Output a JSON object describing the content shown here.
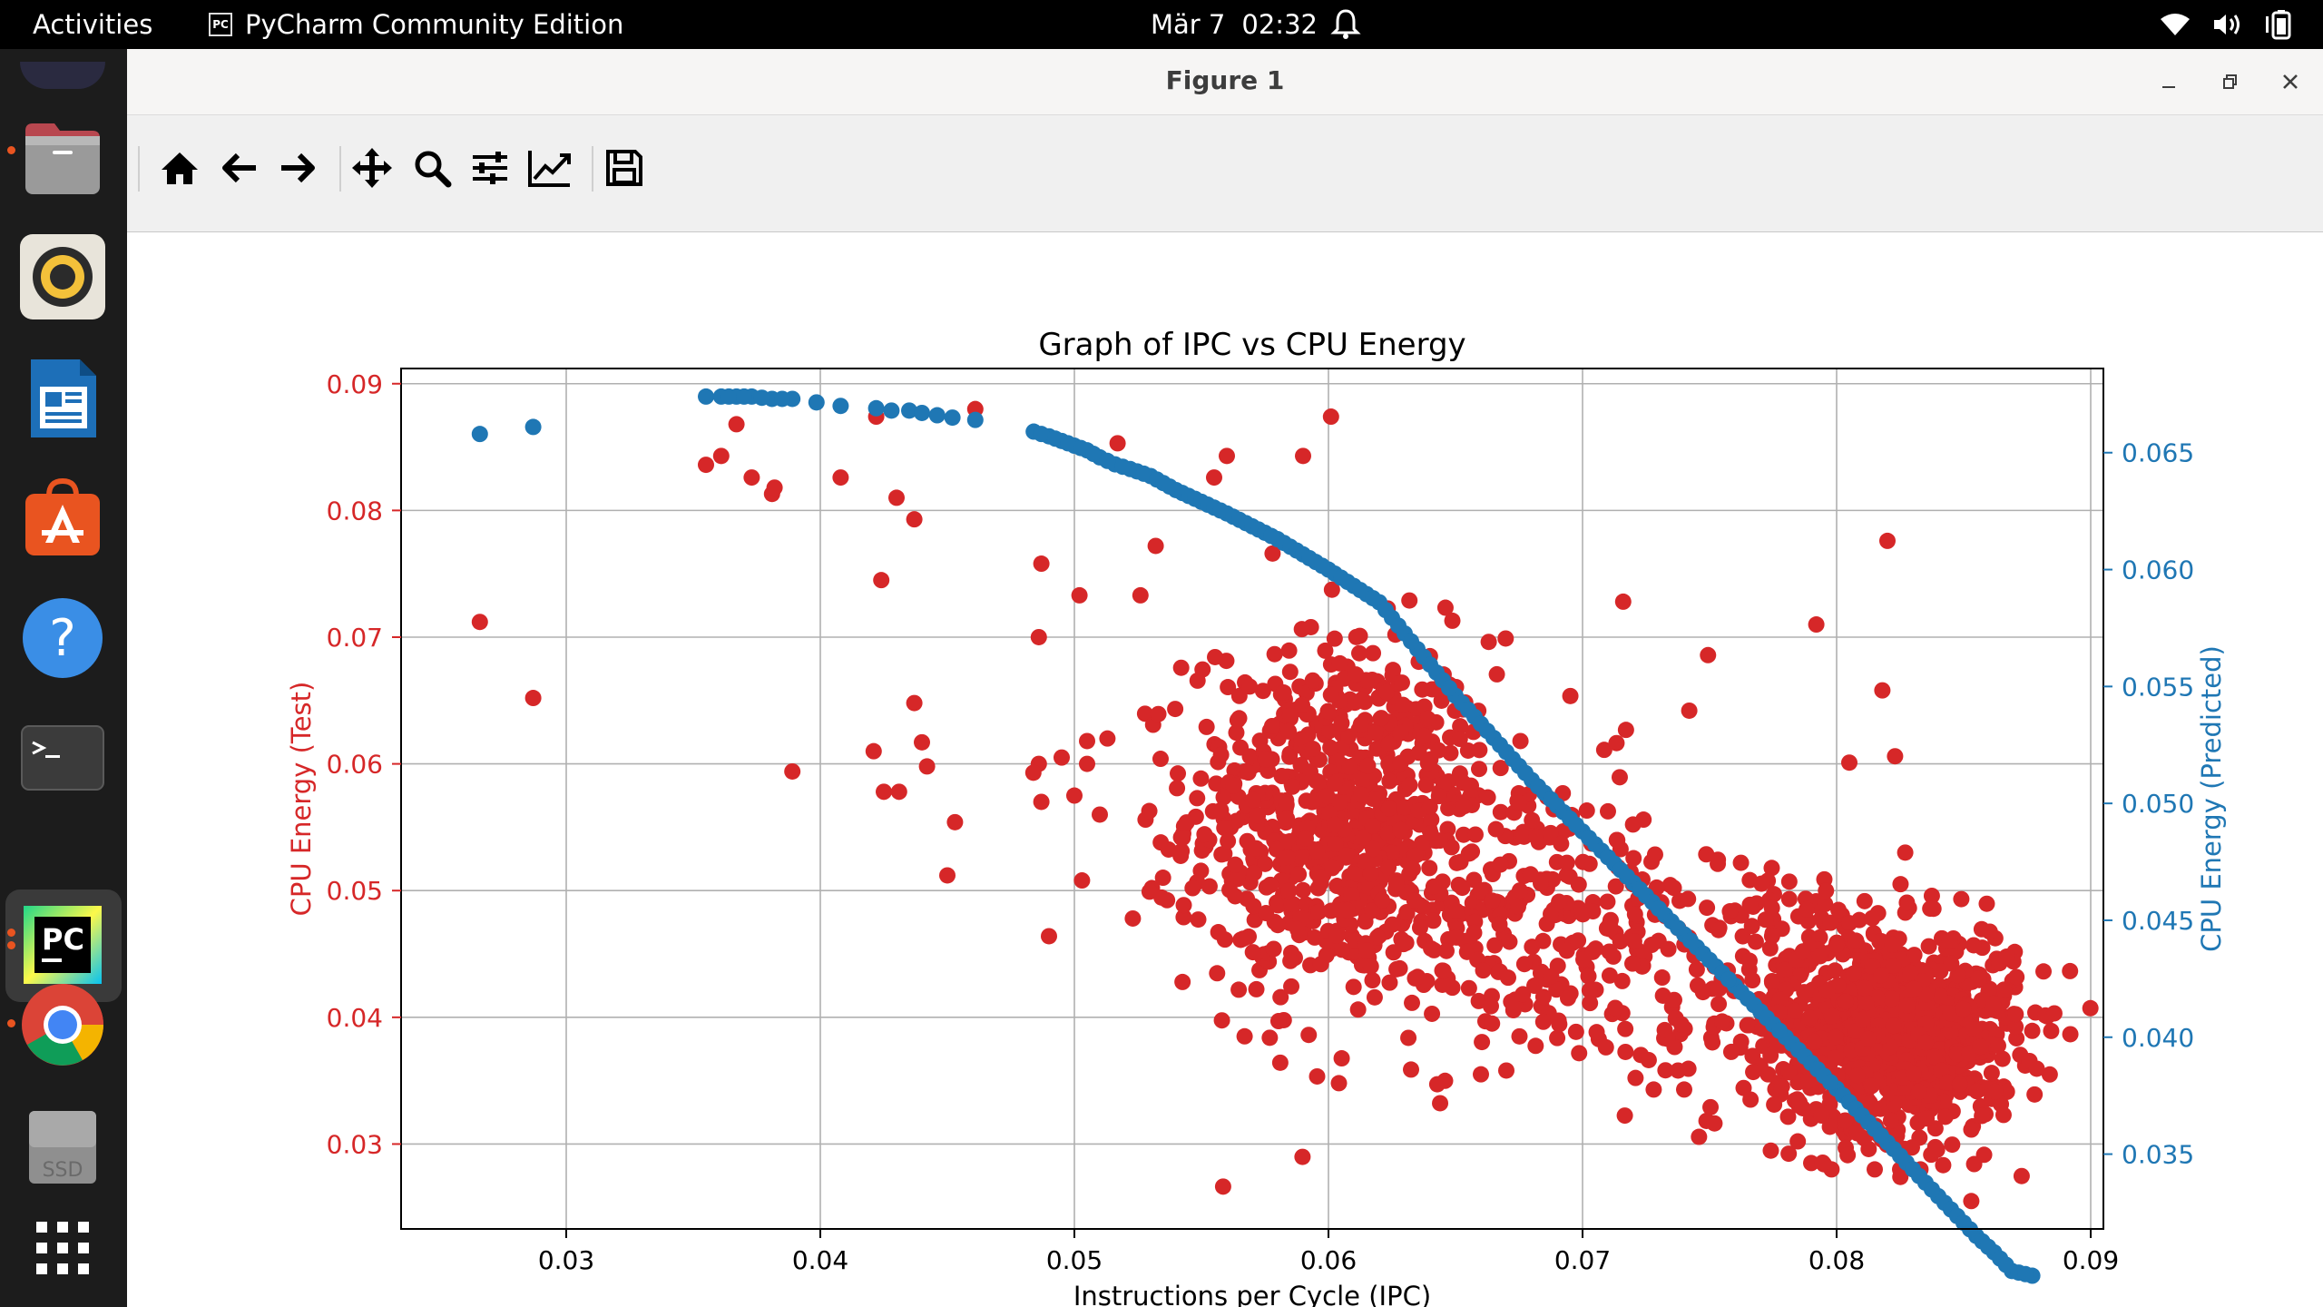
{
  "topbar": {
    "activities": "Activities",
    "app_name": "PyCharm Community Edition",
    "app_icon_text": "PC",
    "date": "Mär 7",
    "time": "02:32"
  },
  "dock": {
    "items": [
      {
        "name": "files",
        "icon": "folder-icon"
      },
      {
        "name": "rhythmbox",
        "icon": "speaker-icon"
      },
      {
        "name": "libreoffice-writer",
        "icon": "document-icon"
      },
      {
        "name": "ubuntu-software",
        "icon": "software-store-icon"
      },
      {
        "name": "help",
        "icon": "help-icon"
      },
      {
        "name": "terminal",
        "icon": "terminal-icon"
      },
      {
        "name": "pycharm",
        "icon": "pycharm-icon",
        "text": "PC"
      },
      {
        "name": "chrome",
        "icon": "chrome-icon"
      },
      {
        "name": "disk",
        "icon": "drive-icon",
        "text": "SSD"
      },
      {
        "name": "show-apps",
        "icon": "grid-icon"
      }
    ]
  },
  "window": {
    "title": "Figure 1",
    "toolbar": [
      {
        "name": "home",
        "icon": "home-icon"
      },
      {
        "name": "back",
        "icon": "arrow-left-icon"
      },
      {
        "name": "forward",
        "icon": "arrow-right-icon"
      },
      {
        "name": "pan",
        "icon": "move-icon"
      },
      {
        "name": "zoom",
        "icon": "zoom-icon"
      },
      {
        "name": "subplots",
        "icon": "sliders-icon"
      },
      {
        "name": "edit-axis",
        "icon": "line-chart-icon"
      },
      {
        "name": "save",
        "icon": "save-icon"
      }
    ]
  },
  "colors": {
    "test": "#d62728",
    "predicted": "#1f77b4"
  },
  "chart_data": {
    "type": "scatter",
    "title": "Graph of IPC vs CPU Energy",
    "xlabel": "Instructions per Cycle (IPC)",
    "ylabel": "CPU Energy (Test)",
    "y2label": "CPU Energy (Predicted)",
    "xlim": [
      0.0235,
      0.0905
    ],
    "ylim": [
      0.0233,
      0.0912
    ],
    "y2lim": [
      0.0318,
      0.0686
    ],
    "xticks": [
      "0.03",
      "0.04",
      "0.05",
      "0.06",
      "0.07",
      "0.08",
      "0.09"
    ],
    "yticks": [
      "0.03",
      "0.04",
      "0.05",
      "0.06",
      "0.07",
      "0.08",
      "0.09"
    ],
    "y2ticks": [
      "0.035",
      "0.040",
      "0.045",
      "0.050",
      "0.055",
      "0.060",
      "0.065"
    ],
    "grid": true,
    "series": [
      {
        "name": "CPU Energy (Test)",
        "axis": "left",
        "color": "#d62728",
        "points": [
          [
            0.0266,
            0.0712
          ],
          [
            0.0287,
            0.0652
          ],
          [
            0.0355,
            0.0836
          ],
          [
            0.0361,
            0.0843
          ],
          [
            0.0367,
            0.0868
          ],
          [
            0.0373,
            0.0826
          ],
          [
            0.0381,
            0.0813
          ],
          [
            0.0382,
            0.0818
          ],
          [
            0.0389,
            0.0594
          ],
          [
            0.0408,
            0.0826
          ],
          [
            0.0422,
            0.0874
          ],
          [
            0.0424,
            0.0745
          ],
          [
            0.0421,
            0.061
          ],
          [
            0.0425,
            0.0578
          ],
          [
            0.043,
            0.081
          ],
          [
            0.0431,
            0.0578
          ],
          [
            0.0437,
            0.0793
          ],
          [
            0.0437,
            0.0648
          ],
          [
            0.044,
            0.0617
          ],
          [
            0.0442,
            0.0598
          ],
          [
            0.045,
            0.0512
          ],
          [
            0.0453,
            0.0554
          ],
          [
            0.0461,
            0.088
          ],
          [
            0.0487,
            0.0758
          ],
          [
            0.0486,
            0.07
          ],
          [
            0.0486,
            0.06
          ],
          [
            0.0487,
            0.057
          ],
          [
            0.049,
            0.0464
          ],
          [
            0.0495,
            0.0605
          ],
          [
            0.05,
            0.0575
          ],
          [
            0.0502,
            0.0733
          ],
          [
            0.0503,
            0.0508
          ],
          [
            0.0505,
            0.06
          ],
          [
            0.0505,
            0.0618
          ],
          [
            0.051,
            0.056
          ],
          [
            0.0513,
            0.062
          ],
          [
            0.0517,
            0.0853
          ],
          [
            0.0523,
            0.0478
          ],
          [
            0.0526,
            0.0733
          ],
          [
            0.0528,
            0.0556
          ],
          [
            0.0532,
            0.0772
          ],
          [
            0.0534,
            0.0538
          ],
          [
            0.0542,
            0.0542
          ],
          [
            0.0543,
            0.0479
          ],
          [
            0.0555,
            0.0826
          ],
          [
            0.056,
            0.0843
          ],
          [
            0.0567,
            0.0385
          ],
          [
            0.0578,
            0.0766
          ],
          [
            0.059,
            0.0843
          ],
          [
            0.0601,
            0.0874
          ],
          [
            0.0611,
            0.05
          ],
          [
            0.066,
            0.0355
          ],
          [
            0.067,
            0.0358
          ],
          [
            0.0716,
            0.0728
          ],
          [
            0.0724,
            0.0556
          ],
          [
            0.0728,
            0.0343
          ],
          [
            0.074,
            0.0343
          ],
          [
            0.0742,
            0.0642
          ],
          [
            0.0773,
            0.0355
          ],
          [
            0.0792,
            0.071
          ],
          [
            0.0805,
            0.0601
          ],
          [
            0.0818,
            0.0658
          ],
          [
            0.082,
            0.0776
          ],
          [
            0.0823,
            0.0606
          ],
          [
            0.0827,
            0.053
          ],
          [
            0.0853,
            0.0255
          ],
          [
            0.0858,
            0.038
          ],
          [
            0.0867,
            0.0395
          ],
          [
            0.0864,
            0.041
          ],
          [
            0.079,
            0.0285
          ],
          [
            0.0798,
            0.028
          ],
          [
            0.0815,
            0.028
          ],
          [
            0.0825,
            0.028
          ],
          [
            0.0833,
            0.028
          ]
        ],
        "clusters": [
          {
            "cx": 0.0605,
            "cy": 0.056,
            "sx": 0.003,
            "sy": 0.007,
            "n": 700
          },
          {
            "cx": 0.0675,
            "cy": 0.048,
            "sx": 0.0045,
            "sy": 0.006,
            "n": 280
          },
          {
            "cx": 0.077,
            "cy": 0.0425,
            "sx": 0.0035,
            "sy": 0.005,
            "n": 160
          },
          {
            "cx": 0.0823,
            "cy": 0.039,
            "sx": 0.0024,
            "sy": 0.004,
            "n": 900
          }
        ]
      },
      {
        "name": "CPU Energy (Predicted)",
        "axis": "right",
        "color": "#1f77b4",
        "points": [
          [
            0.0266,
            0.0658
          ],
          [
            0.0287,
            0.0661
          ],
          [
            0.0355,
            0.0674
          ],
          [
            0.0361,
            0.0674
          ],
          [
            0.0367,
            0.0674
          ],
          [
            0.0373,
            0.0674
          ],
          [
            0.0381,
            0.0673
          ],
          [
            0.0389,
            0.0673
          ],
          [
            0.0408,
            0.067
          ],
          [
            0.0422,
            0.0669
          ],
          [
            0.0428,
            0.0668
          ],
          [
            0.0435,
            0.0668
          ],
          [
            0.044,
            0.0667
          ],
          [
            0.0446,
            0.0666
          ],
          [
            0.0452,
            0.0665
          ],
          [
            0.0461,
            0.0664
          ],
          [
            0.0484,
            0.0659
          ],
          [
            0.049,
            0.0657
          ],
          [
            0.0495,
            0.0655
          ],
          [
            0.05,
            0.0653
          ],
          [
            0.0505,
            0.0651
          ],
          [
            0.051,
            0.0648
          ],
          [
            0.0516,
            0.0645
          ],
          [
            0.0522,
            0.0643
          ],
          [
            0.053,
            0.064
          ],
          [
            0.054,
            0.0634
          ],
          [
            0.056,
            0.0624
          ],
          [
            0.058,
            0.0613
          ],
          [
            0.06,
            0.06
          ],
          [
            0.062,
            0.0586
          ],
          [
            0.0635,
            0.0566
          ],
          [
            0.065,
            0.0546
          ],
          [
            0.0665,
            0.0528
          ],
          [
            0.068,
            0.051
          ],
          [
            0.07,
            0.0488
          ],
          [
            0.072,
            0.0466
          ],
          [
            0.074,
            0.0444
          ],
          [
            0.076,
            0.0422
          ],
          [
            0.078,
            0.04
          ],
          [
            0.08,
            0.0378
          ],
          [
            0.082,
            0.0355
          ],
          [
            0.084,
            0.0332
          ],
          [
            0.0855,
            0.0315
          ],
          [
            0.0862,
            0.0308
          ],
          [
            0.0869,
            0.03
          ],
          [
            0.0877,
            0.0298
          ]
        ]
      }
    ]
  }
}
